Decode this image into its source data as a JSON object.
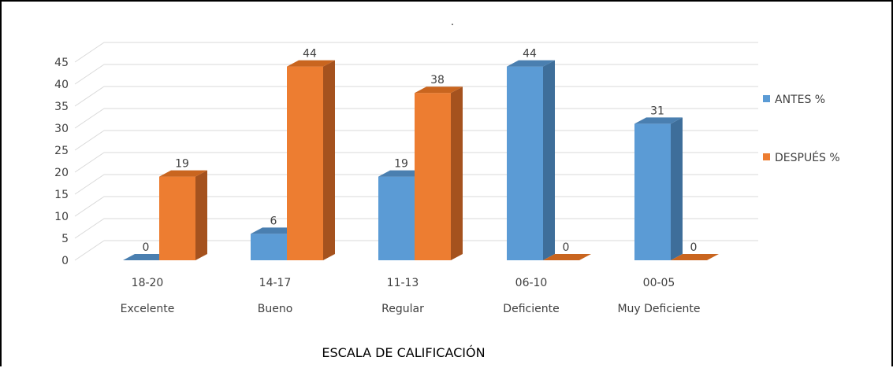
{
  "chart_data": {
    "type": "bar",
    "title": "",
    "subtitle_mark": ".",
    "categories": [
      "18-20",
      "14-17",
      "11-13",
      "06-10",
      "00-05"
    ],
    "category_descriptions": [
      "Excelente",
      "Bueno",
      "Regular",
      "Deficiente",
      "Muy Deficiente"
    ],
    "series": [
      {
        "name": "ANTES %",
        "values": [
          0,
          6,
          19,
          44,
          31
        ],
        "color": "#5B9BD5",
        "side_color": "#3E6E9A",
        "top_color": "#4A7FB0"
      },
      {
        "name": "DESPUÉS %",
        "values": [
          19,
          44,
          38,
          0,
          0
        ],
        "color": "#ED7D31",
        "side_color": "#A5521E",
        "top_color": "#C9651F"
      }
    ],
    "data_labels": [
      [
        "0",
        "6",
        "19",
        "44",
        "31"
      ],
      [
        "19",
        "44",
        "38",
        "0",
        "0"
      ]
    ],
    "xlabel": "ESCALA DE CALIFICACIÓN",
    "ylabel": "",
    "ylim": [
      0,
      45
    ],
    "yticks": [
      "0",
      "5",
      "10",
      "15",
      "20",
      "25",
      "30",
      "35",
      "40",
      "45"
    ],
    "grid": true,
    "legend_position": "right",
    "style": "3d-clustered-column"
  }
}
